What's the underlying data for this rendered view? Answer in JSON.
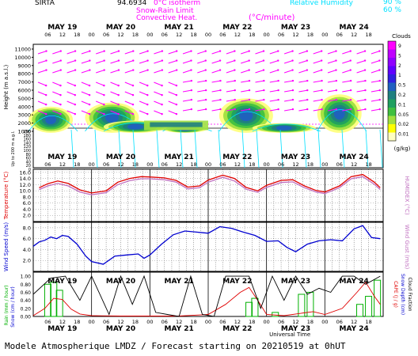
{
  "header": {
    "station": "SIRTA",
    "code": "94.6934",
    "legend_isotherm": "0°C isotherm",
    "legend_snow_rain": "Snow-Rain Limit",
    "legend_convective": "Convective Heat.",
    "legend_convective_unit": "(°C/minute)",
    "rh_label": "Relative Humidity",
    "rh_values": [
      "90 %",
      "60 %"
    ]
  },
  "footer": "Modele Atmospherique LMDZ / Forecast starting on 20210519 at 0hUT",
  "colors": {
    "temp": "#e00000",
    "humidex": "#c070c0",
    "wind": "#0000d0",
    "rain": "#00b000",
    "cape": "#e00000",
    "snow": "#000000",
    "magenta": "#ff00ff",
    "cyan": "#00e0ff"
  },
  "chart_data": [
    {
      "type": "heatmap",
      "panel": "clouds",
      "days": [
        "MAY 19",
        "MAY 20",
        "MAY 21",
        "MAY 22",
        "MAY 23",
        "MAY 24"
      ],
      "hour_ticks": [
        "06",
        "12",
        "18",
        "00",
        "06",
        "12",
        "18",
        "00",
        "06",
        "12",
        "18",
        "00",
        "06",
        "12",
        "18",
        "00",
        "06",
        "12",
        "18",
        "00",
        "06",
        "12",
        "18"
      ],
      "ylabel": "Height (m a.s.l.)",
      "ylabel2": "Up to 200 m a.g.l.",
      "yticks": [
        "11000",
        "10000",
        "9000",
        "8000",
        "7000",
        "6000",
        "5000",
        "4000",
        "3000",
        "2000",
        "1000",
        "200",
        "180",
        "160",
        "140",
        "120",
        "100",
        "80",
        "60",
        "40",
        "20",
        "0"
      ],
      "colorbar_title": "Clouds",
      "colorbar_ticks": [
        "9",
        "5",
        "2",
        "1",
        "0.5",
        "0.2",
        "0.1",
        "0.05",
        "0.02",
        "0.01"
      ],
      "colorbar_unit": "(g/kg)",
      "colorbar_colors": [
        "#ff00ff",
        "#c000ff",
        "#9000ff",
        "#6000ff",
        "#3020e0",
        "#2060c0",
        "#208080",
        "#20a060",
        "#40c040",
        "#a0e040",
        "#ffff00",
        "#ffffc0"
      ],
      "cloud_blobs": [
        {
          "day": 0.3,
          "h": 4000
        },
        {
          "day": 1.35,
          "h": 4500
        },
        {
          "day": 1.75,
          "h": 2300
        },
        {
          "day": 2.6,
          "h": 1800
        },
        {
          "day": 3.65,
          "h": 5000
        },
        {
          "day": 4.3,
          "h": 2000
        },
        {
          "day": 5.25,
          "h": 5500
        }
      ]
    },
    {
      "type": "line",
      "panel": "temperature",
      "ylabel": "Temperature (°C)",
      "ylabel2": "HUMIDEX (°C)",
      "yticks": [
        "16.0",
        "14.0",
        "12.0",
        "10.0",
        "8.0",
        "6.0",
        "4.0",
        "2.0"
      ],
      "ylim": [
        0,
        17
      ],
      "series": [
        {
          "name": "Temperature",
          "color": "#e00000",
          "x": [
            0.1,
            0.25,
            0.42,
            0.6,
            0.8,
            1.0,
            1.25,
            1.45,
            1.65,
            1.85,
            2.0,
            2.25,
            2.45,
            2.65,
            2.85,
            3.0,
            3.25,
            3.45,
            3.65,
            3.85,
            4.0,
            4.25,
            4.45,
            4.65,
            4.85,
            5.0,
            5.25,
            5.45,
            5.65,
            5.85,
            5.95
          ],
          "y": [
            11.0,
            12.3,
            13.2,
            12.4,
            10.3,
            9.3,
            10.0,
            12.8,
            14.0,
            14.6,
            14.5,
            14.2,
            13.4,
            11.2,
            11.6,
            13.5,
            15.1,
            14.0,
            11.1,
            10.0,
            11.8,
            13.4,
            13.6,
            11.6,
            10.1,
            9.6,
            11.6,
            14.6,
            15.3,
            12.8,
            11.0
          ]
        },
        {
          "name": "HUMIDEX",
          "color": "#c070c0",
          "x": [
            0.1,
            0.25,
            0.42,
            0.6,
            0.8,
            1.0,
            1.25,
            1.45,
            1.65,
            1.85,
            2.0,
            2.25,
            2.45,
            2.65,
            2.85,
            3.0,
            3.25,
            3.45,
            3.65,
            3.85,
            4.0,
            4.25,
            4.45,
            4.65,
            4.85,
            5.0,
            5.25,
            5.45,
            5.65,
            5.85,
            5.95
          ],
          "y": [
            10.4,
            11.6,
            12.4,
            11.6,
            9.6,
            8.7,
            9.4,
            12.0,
            13.3,
            13.9,
            13.9,
            13.6,
            12.8,
            10.6,
            11.0,
            12.8,
            14.4,
            13.2,
            10.5,
            9.5,
            11.1,
            12.7,
            12.9,
            11.0,
            9.6,
            9.1,
            11.0,
            13.9,
            14.6,
            12.1,
            10.4
          ]
        }
      ]
    },
    {
      "type": "line",
      "panel": "wind",
      "ylabel": "Wind Speed (m/s)",
      "ylabel2": "Wind Gust (m/s)",
      "yticks": [
        "8.0",
        "6.0",
        "4.0",
        "2.0"
      ],
      "ylim": [
        0,
        9
      ],
      "series": [
        {
          "name": "Wind Speed",
          "color": "#0000d0",
          "x": [
            0.0,
            0.1,
            0.2,
            0.3,
            0.4,
            0.5,
            0.6,
            0.75,
            0.9,
            1.0,
            1.2,
            1.4,
            1.6,
            1.8,
            1.9,
            2.0,
            2.2,
            2.4,
            2.6,
            2.8,
            3.0,
            3.2,
            3.4,
            3.6,
            3.8,
            4.0,
            4.2,
            4.35,
            4.5,
            4.7,
            4.9,
            5.1,
            5.3,
            5.5,
            5.65,
            5.8,
            5.95
          ],
          "y": [
            4.6,
            5.4,
            5.7,
            6.3,
            6.0,
            6.6,
            6.4,
            5.0,
            2.8,
            1.8,
            1.3,
            2.8,
            3.0,
            3.2,
            2.4,
            3.0,
            5.0,
            6.7,
            7.4,
            7.2,
            7.0,
            8.2,
            7.9,
            7.2,
            6.6,
            5.5,
            5.6,
            4.4,
            3.6,
            5.0,
            5.6,
            5.8,
            5.6,
            7.8,
            8.4,
            6.2,
            6.0
          ]
        }
      ]
    },
    {
      "type": "line",
      "panel": "precipitation",
      "ylabel": "Rain (mm / hour)",
      "ylabel_snow": "Snow (cm / hour)",
      "ylabel2": "CAPE (J / g)",
      "ylabel3": "Snow Depth (cm)",
      "ylabel4": "Cloud Fraction",
      "yticks": [
        "1.00",
        "0.80",
        "0.60",
        "0.40",
        "0.20",
        "0.00"
      ],
      "ylim": [
        0,
        1.1
      ],
      "series": [
        {
          "name": "Rain",
          "color": "#00b000",
          "x": [
            0.25,
            0.35,
            0.45,
            3.7,
            3.8,
            4.15,
            4.6,
            4.75,
            5.6,
            5.75,
            5.9
          ],
          "y": [
            0.8,
            0.85,
            0.65,
            0.35,
            0.45,
            0.1,
            0.55,
            0.6,
            0.3,
            0.5,
            0.9
          ]
        },
        {
          "name": "CAPE",
          "color": "#e00000",
          "x": [
            0.0,
            0.2,
            0.35,
            0.5,
            0.65,
            0.8,
            1.0,
            1.5,
            2.0,
            2.5,
            3.0,
            3.3,
            3.55,
            3.7,
            3.85,
            4.0,
            4.3,
            4.6,
            4.8,
            5.0,
            5.3,
            5.55,
            5.7,
            5.85,
            5.95
          ],
          "y": [
            0.02,
            0.2,
            0.45,
            0.42,
            0.18,
            0.06,
            0.02,
            0.01,
            0.01,
            0.01,
            0.05,
            0.3,
            0.6,
            0.72,
            0.4,
            0.05,
            0.02,
            0.08,
            0.12,
            0.05,
            0.2,
            0.6,
            0.85,
            0.5,
            0.3
          ]
        },
        {
          "name": "Cloud Fraction",
          "color": "#000000",
          "x": [
            0.0,
            0.3,
            0.55,
            0.8,
            1.0,
            1.3,
            1.5,
            1.7,
            1.9,
            2.1,
            2.3,
            2.5,
            2.7,
            2.9,
            3.1,
            3.3,
            3.5,
            3.7,
            3.9,
            4.1,
            4.3,
            4.5,
            4.7,
            4.9,
            5.1,
            5.3,
            5.5,
            5.7,
            5.95
          ],
          "y": [
            0.55,
            0.95,
            1.0,
            0.4,
            1.0,
            0.05,
            1.0,
            0.3,
            1.0,
            0.1,
            0.05,
            0.0,
            1.0,
            0.05,
            0.0,
            1.0,
            1.0,
            1.0,
            0.2,
            1.0,
            0.4,
            1.0,
            0.55,
            0.7,
            0.6,
            1.0,
            1.0,
            0.8,
            1.0
          ]
        }
      ]
    }
  ]
}
